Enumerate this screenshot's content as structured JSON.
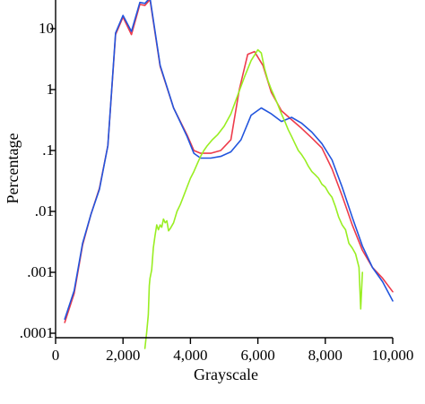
{
  "chart_data": {
    "type": "line",
    "xlabel": "Grayscale",
    "ylabel": "Percentage",
    "xlim": [
      0,
      10000
    ],
    "ylim": [
      0.0001,
      30
    ],
    "y_scale": "log",
    "grid": false,
    "x_ticks": [
      {
        "value": 0,
        "label": "0"
      },
      {
        "value": 2000,
        "label": "2,000"
      },
      {
        "value": 4000,
        "label": "4,000"
      },
      {
        "value": 6000,
        "label": "6,000"
      },
      {
        "value": 8000,
        "label": "8,000"
      },
      {
        "value": 10000,
        "label": "10,000"
      }
    ],
    "y_ticks": [
      {
        "value": 10,
        "label": "10"
      },
      {
        "value": 1,
        "label": "1"
      },
      {
        "value": 0.1,
        "label": ".1"
      },
      {
        "value": 0.01,
        "label": ".01"
      },
      {
        "value": 0.001,
        "label": ".001"
      },
      {
        "value": 0.0001,
        "label": ".0001"
      }
    ],
    "series": [
      {
        "color": "#ee3b4b",
        "x": [
          270,
          550,
          800,
          1050,
          1300,
          1550,
          1780,
          2000,
          2250,
          2500,
          2650,
          2800,
          3100,
          3500,
          3900,
          4100,
          4300,
          4600,
          4900,
          5200,
          5450,
          5700,
          5900,
          6150,
          6400,
          6700,
          7000,
          7300,
          7600,
          7900,
          8200,
          8500,
          8800,
          9100,
          9400,
          9700,
          10000
        ],
        "y": [
          0.00015,
          0.00045,
          0.0028,
          0.009,
          0.024,
          0.12,
          8.0,
          15.5,
          8.0,
          25.0,
          24.0,
          30.0,
          2.4,
          0.5,
          0.18,
          0.1,
          0.09,
          0.09,
          0.1,
          0.15,
          1.0,
          3.8,
          4.2,
          2.5,
          0.9,
          0.45,
          0.32,
          0.23,
          0.16,
          0.11,
          0.05,
          0.018,
          0.006,
          0.0023,
          0.0012,
          0.0008,
          0.00048
        ]
      },
      {
        "color": "#2255dd",
        "x": [
          270,
          550,
          800,
          1050,
          1300,
          1550,
          1780,
          2000,
          2250,
          2500,
          2650,
          2800,
          3100,
          3500,
          3900,
          4100,
          4300,
          4600,
          4900,
          5200,
          5500,
          5800,
          6100,
          6400,
          6700,
          7000,
          7300,
          7600,
          7900,
          8200,
          8500,
          8800,
          9100,
          9400,
          9700,
          10000
        ],
        "y": [
          0.00017,
          0.0005,
          0.003,
          0.009,
          0.023,
          0.12,
          8.5,
          16.5,
          9.0,
          27.0,
          26.0,
          32.0,
          2.5,
          0.5,
          0.17,
          0.09,
          0.075,
          0.075,
          0.08,
          0.095,
          0.15,
          0.38,
          0.5,
          0.4,
          0.3,
          0.35,
          0.28,
          0.2,
          0.13,
          0.07,
          0.025,
          0.008,
          0.0027,
          0.0012,
          0.0007,
          0.00034
        ]
      },
      {
        "color": "#99ee22",
        "x": [
          2650,
          2700,
          2750,
          2780,
          2800,
          2850,
          2900,
          2950,
          3000,
          3050,
          3100,
          3150,
          3200,
          3250,
          3300,
          3350,
          3400,
          3500,
          3600,
          3700,
          3800,
          3900,
          4000,
          4100,
          4200,
          4300,
          4400,
          4500,
          4650,
          4800,
          5000,
          5200,
          5400,
          5600,
          5800,
          6000,
          6100,
          6200,
          6300,
          6400,
          6500,
          6600,
          6700,
          6800,
          6900,
          7000,
          7100,
          7200,
          7300,
          7400,
          7500,
          7600,
          7700,
          7800,
          7900,
          8000,
          8100,
          8200,
          8300,
          8400,
          8500,
          8600,
          8700,
          8800,
          8900,
          9000,
          9050,
          9100
        ],
        "y": [
          5e-05,
          0.0001,
          0.0002,
          0.0006,
          0.0008,
          0.0011,
          0.0025,
          0.004,
          0.006,
          0.005,
          0.006,
          0.0055,
          0.0075,
          0.0065,
          0.007,
          0.0048,
          0.0052,
          0.0065,
          0.01,
          0.013,
          0.018,
          0.025,
          0.035,
          0.045,
          0.06,
          0.08,
          0.1,
          0.12,
          0.15,
          0.18,
          0.25,
          0.4,
          0.8,
          1.6,
          3.0,
          4.5,
          4.0,
          2.2,
          1.4,
          1.0,
          0.75,
          0.55,
          0.4,
          0.3,
          0.22,
          0.17,
          0.13,
          0.1,
          0.085,
          0.07,
          0.055,
          0.045,
          0.04,
          0.035,
          0.028,
          0.025,
          0.02,
          0.017,
          0.012,
          0.008,
          0.006,
          0.005,
          0.003,
          0.0025,
          0.002,
          0.0012,
          0.00025,
          0.001
        ]
      }
    ]
  }
}
